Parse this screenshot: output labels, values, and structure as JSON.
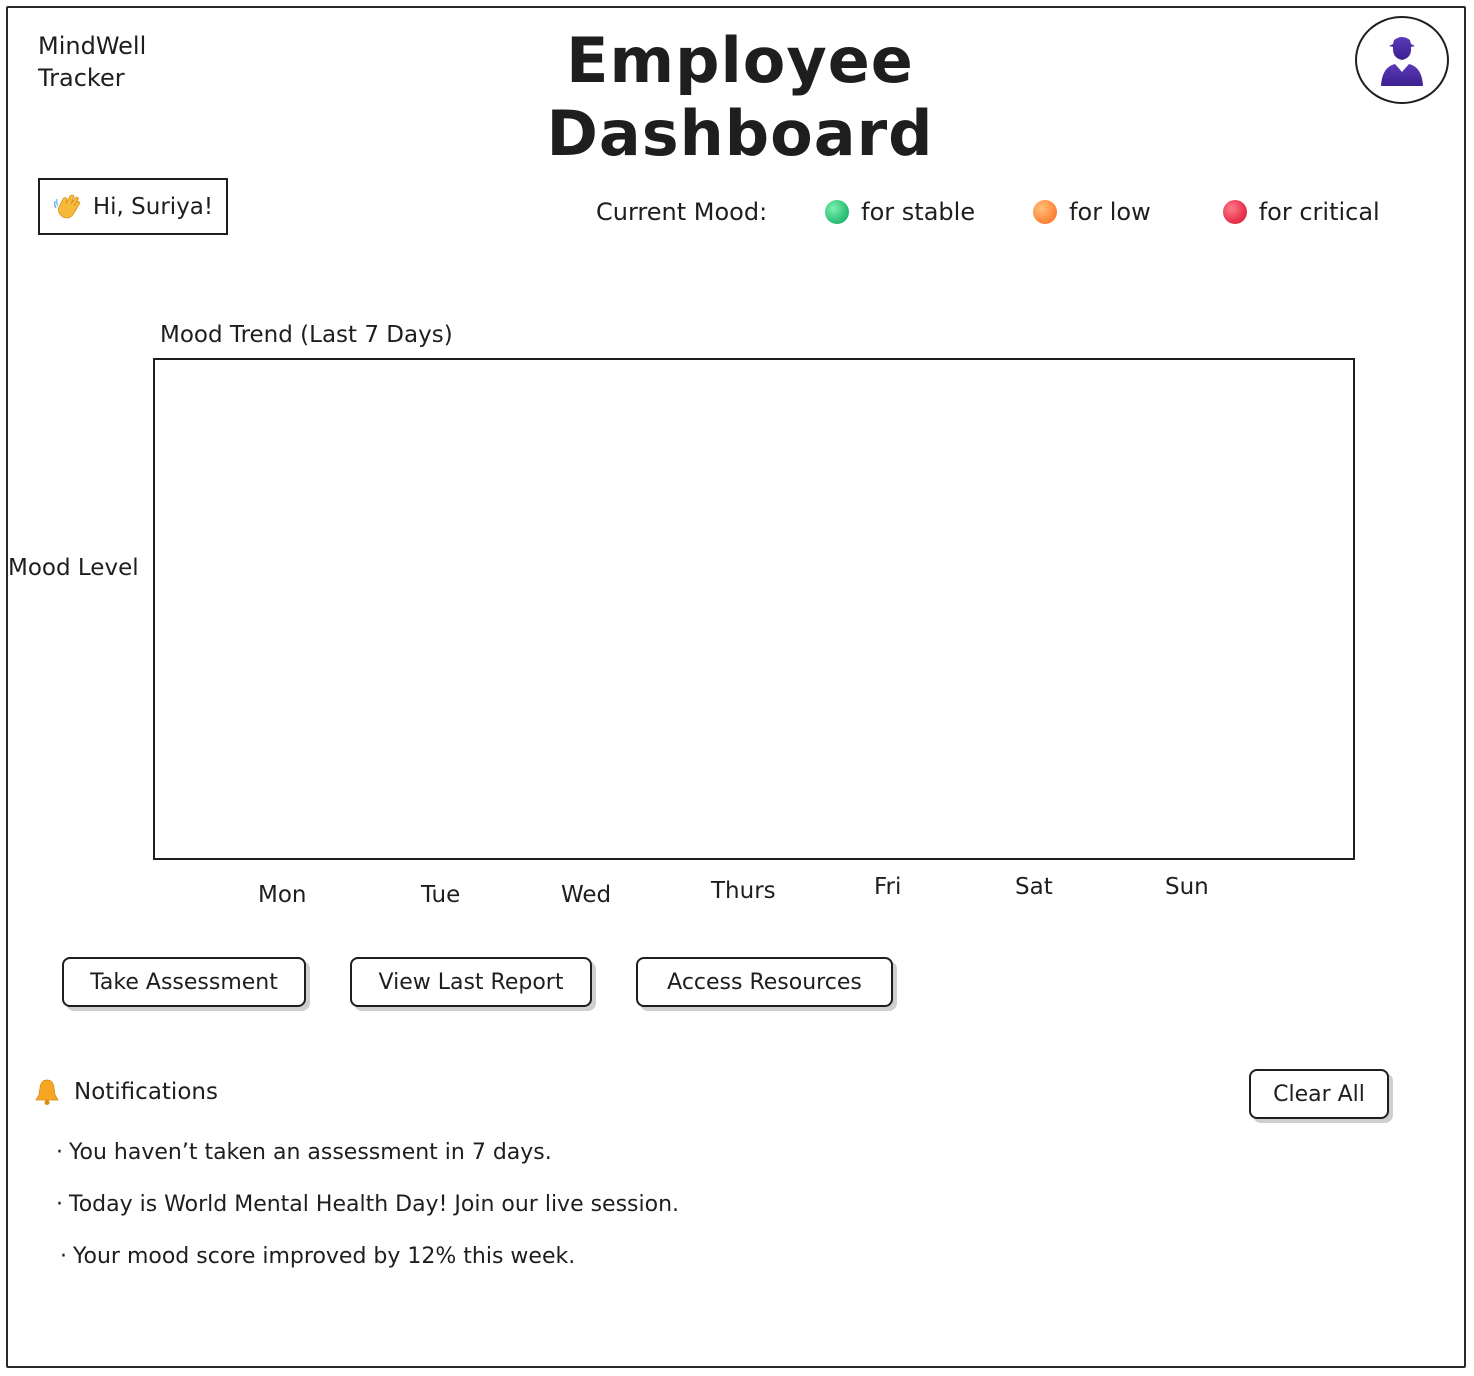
{
  "app": {
    "name_line1": "MindWell",
    "name_line2": "Tracker"
  },
  "header": {
    "title": "Employee Dashboard",
    "avatar_icon": "user-avatar-icon"
  },
  "greeting": {
    "icon": "waving-hand-icon",
    "text": "Hi, Suriya!"
  },
  "mood_legend": {
    "label": "Current Mood:",
    "items": [
      {
        "label": "for stable",
        "color": "#2fc27a"
      },
      {
        "label": "for low",
        "color": "#ff8a3d"
      },
      {
        "label": "for critical",
        "color": "#e8344d"
      }
    ]
  },
  "chart_data": {
    "type": "line",
    "title": "Mood Trend (Last 7 Days)",
    "xlabel": "",
    "ylabel": "Mood Level",
    "categories": [
      "Mon",
      "Tue",
      "Wed",
      "Thurs",
      "Fri",
      "Sat",
      "Sun"
    ],
    "series": [],
    "grid": false
  },
  "actions": {
    "take_assessment": "Take Assessment",
    "view_last_report": "View Last Report",
    "access_resources": "Access Resources"
  },
  "notifications": {
    "icon": "bell-icon",
    "title": "Notifications",
    "clear_label": "Clear All",
    "items": [
      "You haven’t taken an assessment in 7 days.",
      "Today is World Mental Health Day! Join our live session.",
      "Your mood score improved by 12% this week."
    ]
  }
}
